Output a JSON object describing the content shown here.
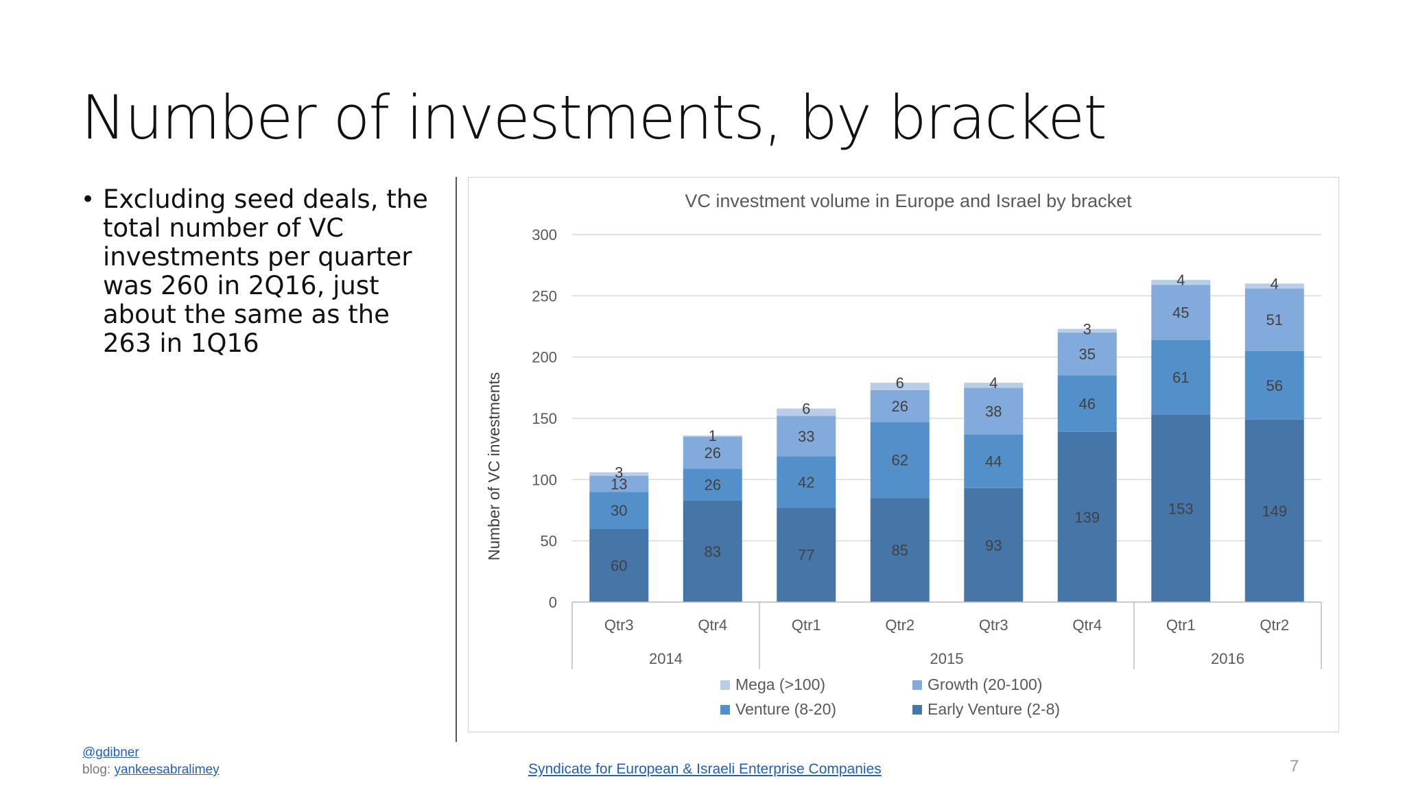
{
  "slide": {
    "title": "Number of investments, by bracket",
    "bullets": [
      "Excluding seed deals, the total number of VC investments per quarter was 260 in 2Q16, just about the same as the 263 in 1Q16"
    ],
    "footer": {
      "handle": "@gdibner",
      "blog_prefix": "blog: ",
      "blog_link": "yankeesabralimey",
      "organization": "Syndicate for European & Israeli Enterprise Companies",
      "page_number": "7"
    }
  },
  "chart_data": {
    "type": "bar",
    "stacked": true,
    "title": "VC investment volume in Europe and Israel by bracket",
    "xlabel": "",
    "ylabel": "Number of VC investments",
    "ylim": [
      0,
      300
    ],
    "yticks": [
      0,
      50,
      100,
      150,
      200,
      250,
      300
    ],
    "grid": true,
    "legend_position": "bottom",
    "categories": [
      "Qtr3",
      "Qtr4",
      "Qtr1",
      "Qtr2",
      "Qtr3",
      "Qtr4",
      "Qtr1",
      "Qtr2"
    ],
    "groups": [
      {
        "label": "2014",
        "count": 2
      },
      {
        "label": "2015",
        "count": 4
      },
      {
        "label": "2016",
        "count": 2
      }
    ],
    "series": [
      {
        "name": "Early Venture (2-8)",
        "color": "#4676a8",
        "values": [
          60,
          83,
          77,
          85,
          93,
          139,
          153,
          149
        ]
      },
      {
        "name": "Venture (8-20)",
        "color": "#5390c9",
        "values": [
          30,
          26,
          42,
          62,
          44,
          46,
          61,
          56
        ]
      },
      {
        "name": "Growth (20-100)",
        "color": "#82abdc",
        "values": [
          13,
          26,
          33,
          26,
          38,
          35,
          45,
          51
        ]
      },
      {
        "name": "Mega (>100)",
        "color": "#b9cde6",
        "values": [
          3,
          1,
          6,
          6,
          4,
          3,
          4,
          4
        ]
      }
    ],
    "legend_order": [
      "Mega (>100)",
      "Growth (20-100)",
      "Venture (8-20)",
      "Early Venture (2-8)"
    ]
  }
}
